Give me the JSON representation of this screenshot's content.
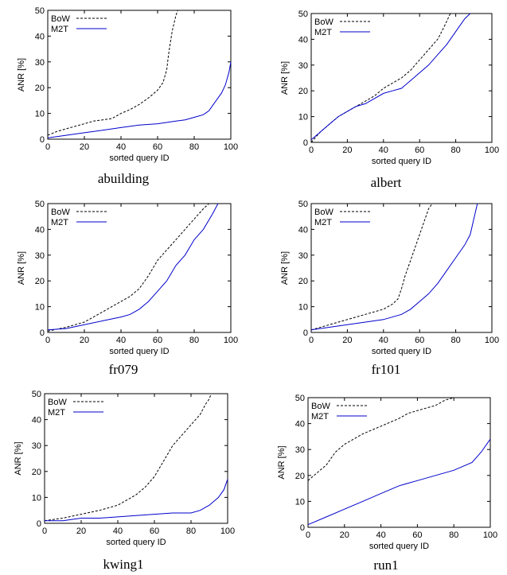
{
  "colors": {
    "bow": "#000000",
    "m2t": "#0000cc",
    "axis": "#000000",
    "background": "#ffffff"
  },
  "chart_data": [
    {
      "type": "line",
      "title": "abuilding",
      "xlabel": "sorted query ID",
      "ylabel": "ANR [%]",
      "xlim": [
        0,
        100
      ],
      "ylim": [
        0,
        50
      ],
      "xticks": [
        0,
        20,
        40,
        60,
        80,
        100
      ],
      "yticks": [
        0,
        10,
        20,
        30,
        40,
        50
      ],
      "legend": {
        "position": "top-left",
        "entries": [
          "BoW",
          "M2T"
        ]
      },
      "series": [
        {
          "name": "BoW",
          "style": "dashed",
          "x": [
            0,
            5,
            10,
            15,
            20,
            25,
            30,
            35,
            40,
            45,
            50,
            55,
            60,
            63,
            65,
            66,
            68,
            70,
            71
          ],
          "y": [
            1.5,
            3,
            4,
            5,
            6,
            7,
            7.5,
            8,
            10,
            11.5,
            13.5,
            16,
            19,
            22,
            27,
            33,
            42,
            48,
            50
          ]
        },
        {
          "name": "M2T",
          "style": "solid",
          "x": [
            0,
            5,
            10,
            15,
            20,
            30,
            40,
            50,
            60,
            70,
            75,
            80,
            85,
            88,
            90,
            93,
            95,
            97,
            99,
            100
          ],
          "y": [
            0.5,
            1,
            1.5,
            2,
            2.5,
            3.5,
            4.5,
            5.5,
            6,
            7,
            7.5,
            8.5,
            9.5,
            11,
            13,
            16,
            18,
            21,
            26,
            30
          ]
        }
      ]
    },
    {
      "type": "line",
      "title": "albert",
      "xlabel": "sorted query ID",
      "ylabel": "ANR [%]",
      "xlim": [
        0,
        100
      ],
      "ylim": [
        0,
        50
      ],
      "xticks": [
        0,
        20,
        40,
        60,
        80,
        100
      ],
      "yticks": [
        0,
        10,
        20,
        30,
        40,
        50
      ],
      "legend": {
        "position": "top-left",
        "entries": [
          "BoW",
          "M2T"
        ]
      },
      "series": [
        {
          "name": "BoW",
          "style": "dashed",
          "x": [
            0,
            5,
            10,
            15,
            20,
            25,
            30,
            35,
            40,
            45,
            50,
            55,
            60,
            65,
            70,
            73,
            75,
            77
          ],
          "y": [
            0,
            4,
            7,
            10,
            12,
            14,
            16,
            18,
            21,
            23,
            25,
            28,
            32,
            36,
            40,
            44,
            47,
            50
          ]
        },
        {
          "name": "M2T",
          "style": "solid",
          "x": [
            0,
            5,
            10,
            15,
            20,
            25,
            30,
            35,
            40,
            45,
            50,
            55,
            60,
            65,
            70,
            75,
            80,
            85,
            88
          ],
          "y": [
            1,
            4,
            7,
            10,
            12,
            14,
            15,
            17,
            19,
            20,
            21,
            24,
            27,
            30,
            34,
            38,
            43,
            48,
            50
          ]
        }
      ]
    },
    {
      "type": "line",
      "title": "fr079",
      "xlabel": "sorted query ID",
      "ylabel": "ANR [%]",
      "xlim": [
        0,
        100
      ],
      "ylim": [
        0,
        50
      ],
      "xticks": [
        0,
        20,
        40,
        60,
        80,
        100
      ],
      "yticks": [
        0,
        10,
        20,
        30,
        40,
        50
      ],
      "legend": {
        "position": "top-left",
        "entries": [
          "BoW",
          "M2T"
        ]
      },
      "series": [
        {
          "name": "BoW",
          "style": "dashed",
          "x": [
            0,
            10,
            20,
            25,
            30,
            35,
            40,
            45,
            50,
            55,
            60,
            65,
            70,
            75,
            80,
            85,
            88
          ],
          "y": [
            0.5,
            2,
            4,
            6,
            8,
            10,
            12,
            14,
            17,
            22,
            28,
            32,
            36,
            40,
            44,
            48,
            50
          ]
        },
        {
          "name": "M2T",
          "style": "solid",
          "x": [
            0,
            10,
            20,
            30,
            40,
            45,
            50,
            55,
            60,
            65,
            70,
            75,
            80,
            85,
            90,
            93
          ],
          "y": [
            1,
            1.5,
            3,
            4.5,
            6,
            7,
            9,
            12,
            16,
            20,
            26,
            30,
            36,
            40,
            46,
            50
          ]
        }
      ]
    },
    {
      "type": "line",
      "title": "fr101",
      "xlabel": "sorted query ID",
      "ylabel": "ANR [%]",
      "xlim": [
        0,
        100
      ],
      "ylim": [
        0,
        50
      ],
      "xticks": [
        0,
        20,
        40,
        60,
        80,
        100
      ],
      "yticks": [
        0,
        10,
        20,
        30,
        40,
        50
      ],
      "legend": {
        "position": "top-left",
        "entries": [
          "BoW",
          "M2T"
        ]
      },
      "series": [
        {
          "name": "BoW",
          "style": "dashed",
          "x": [
            0,
            10,
            20,
            30,
            40,
            45,
            48,
            50,
            52,
            55,
            58,
            60,
            63,
            65,
            67
          ],
          "y": [
            1,
            3,
            5,
            7,
            9,
            11,
            13,
            17,
            22,
            28,
            34,
            38,
            44,
            48,
            50
          ]
        },
        {
          "name": "M2T",
          "style": "solid",
          "x": [
            0,
            10,
            20,
            30,
            40,
            50,
            55,
            60,
            65,
            70,
            75,
            80,
            85,
            88,
            90,
            92
          ],
          "y": [
            1,
            2,
            3,
            4,
            5,
            7,
            9,
            12,
            15,
            19,
            24,
            29,
            34,
            38,
            44,
            50
          ]
        }
      ]
    },
    {
      "type": "line",
      "title": "kwing1",
      "xlabel": "sorted query ID",
      "ylabel": "ANR [%]",
      "xlim": [
        0,
        100
      ],
      "ylim": [
        0,
        50
      ],
      "xticks": [
        0,
        20,
        40,
        60,
        80,
        100
      ],
      "yticks": [
        0,
        10,
        20,
        30,
        40,
        50
      ],
      "legend": {
        "position": "top-left",
        "entries": [
          "BoW",
          "M2T"
        ]
      },
      "series": [
        {
          "name": "BoW",
          "style": "dashed",
          "x": [
            0,
            10,
            20,
            30,
            40,
            45,
            50,
            55,
            60,
            65,
            70,
            75,
            80,
            85,
            88,
            90,
            91
          ],
          "y": [
            1,
            2,
            3.5,
            5,
            7,
            9,
            11,
            14,
            18,
            24,
            30,
            34,
            38,
            42,
            46,
            48,
            50
          ]
        },
        {
          "name": "M2T",
          "style": "solid",
          "x": [
            0,
            10,
            15,
            20,
            30,
            40,
            50,
            60,
            70,
            80,
            85,
            90,
            95,
            98,
            100
          ],
          "y": [
            1,
            1,
            1.5,
            2,
            2,
            2.5,
            3,
            3.5,
            4,
            4,
            5,
            7,
            10,
            13,
            17
          ]
        }
      ]
    },
    {
      "type": "line",
      "title": "run1",
      "xlabel": "sorted query ID",
      "ylabel": "ANR [%]",
      "xlim": [
        0,
        100
      ],
      "ylim": [
        0,
        50
      ],
      "xticks": [
        0,
        20,
        40,
        60,
        80,
        100
      ],
      "yticks": [
        0,
        10,
        20,
        30,
        40,
        50
      ],
      "legend": {
        "position": "top-left",
        "entries": [
          "BoW",
          "M2T"
        ]
      },
      "series": [
        {
          "name": "BoW",
          "style": "dashed",
          "x": [
            0,
            5,
            10,
            15,
            20,
            30,
            40,
            50,
            55,
            60,
            65,
            70,
            75,
            80
          ],
          "y": [
            18,
            21,
            24,
            29,
            32,
            36,
            39,
            42,
            44,
            45,
            46,
            47,
            49,
            50
          ]
        },
        {
          "name": "M2T",
          "style": "solid",
          "x": [
            0,
            10,
            20,
            30,
            40,
            50,
            60,
            70,
            80,
            90,
            95,
            100
          ],
          "y": [
            1,
            4,
            7,
            10,
            13,
            16,
            18,
            20,
            22,
            25,
            29,
            34
          ]
        }
      ]
    }
  ]
}
